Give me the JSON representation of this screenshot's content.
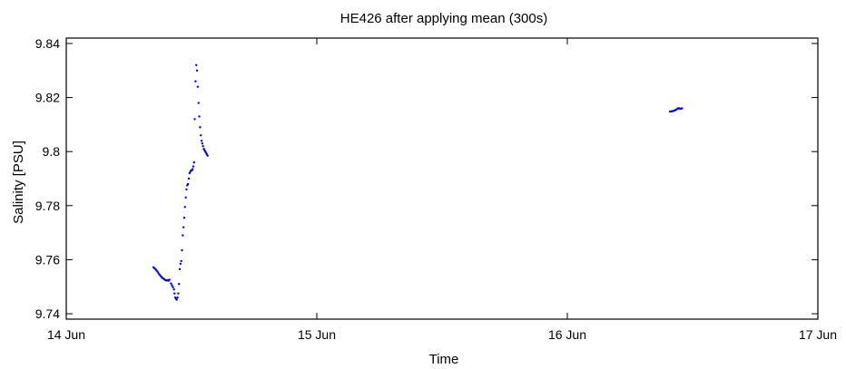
{
  "chart_data": {
    "type": "scatter",
    "title": "HE426 after applying mean (300s)",
    "xlabel": "Time",
    "ylabel": "Salinity [PSU]",
    "xlim": [
      0,
      3
    ],
    "ylim": [
      9.738,
      9.842
    ],
    "x_ticks": [
      {
        "value": 0,
        "label": "14 Jun"
      },
      {
        "value": 1,
        "label": "15 Jun"
      },
      {
        "value": 2,
        "label": "16 Jun"
      },
      {
        "value": 3,
        "label": "17 Jun"
      }
    ],
    "y_ticks": [
      {
        "value": 9.74,
        "label": "9.74"
      },
      {
        "value": 9.76,
        "label": "9.76"
      },
      {
        "value": 9.78,
        "label": "9.78"
      },
      {
        "value": 9.8,
        "label": "9.8"
      },
      {
        "value": 9.82,
        "label": "9.82"
      },
      {
        "value": 9.84,
        "label": "9.84"
      }
    ],
    "grid": false,
    "marker_color": "#0000ff",
    "series": [
      {
        "values": [
          [
            0.348,
            9.7572
          ],
          [
            0.352,
            9.7568
          ],
          [
            0.356,
            9.7565
          ],
          [
            0.36,
            9.756
          ],
          [
            0.364,
            9.7556
          ],
          [
            0.368,
            9.755
          ],
          [
            0.372,
            9.7545
          ],
          [
            0.376,
            9.754
          ],
          [
            0.38,
            9.7536
          ],
          [
            0.384,
            9.7532
          ],
          [
            0.388,
            9.753
          ],
          [
            0.392,
            9.7527
          ],
          [
            0.396,
            9.7524
          ],
          [
            0.4,
            9.7523
          ],
          [
            0.404,
            9.7524
          ],
          [
            0.408,
            9.7522
          ],
          [
            0.412,
            9.7526
          ],
          [
            0.418,
            9.7512
          ],
          [
            0.422,
            9.7505
          ],
          [
            0.426,
            9.7498
          ],
          [
            0.43,
            9.749
          ],
          [
            0.432,
            9.7475
          ],
          [
            0.435,
            9.746
          ],
          [
            0.438,
            9.7455
          ],
          [
            0.441,
            9.7452
          ],
          [
            0.444,
            9.746
          ],
          [
            0.447,
            9.7475
          ],
          [
            0.45,
            9.751
          ],
          [
            0.453,
            9.7565
          ],
          [
            0.456,
            9.7585
          ],
          [
            0.459,
            9.7595
          ],
          [
            0.462,
            9.7635
          ],
          [
            0.465,
            9.769
          ],
          [
            0.468,
            9.772
          ],
          [
            0.471,
            9.7755
          ],
          [
            0.474,
            9.7795
          ],
          [
            0.477,
            9.783
          ],
          [
            0.48,
            9.786
          ],
          [
            0.483,
            9.7875
          ],
          [
            0.486,
            9.788
          ],
          [
            0.489,
            9.79
          ],
          [
            0.492,
            9.792
          ],
          [
            0.495,
            9.7925
          ],
          [
            0.498,
            9.793
          ],
          [
            0.501,
            9.793
          ],
          [
            0.504,
            9.7935
          ],
          [
            0.507,
            9.7945
          ],
          [
            0.51,
            9.796
          ],
          [
            0.513,
            9.812
          ],
          [
            0.516,
            9.826
          ],
          [
            0.519,
            9.832
          ],
          [
            0.522,
            9.83
          ],
          [
            0.525,
            9.824
          ],
          [
            0.528,
            9.818
          ],
          [
            0.531,
            9.813
          ],
          [
            0.534,
            9.809
          ],
          [
            0.537,
            9.806
          ],
          [
            0.54,
            9.804
          ],
          [
            0.543,
            9.803
          ],
          [
            0.546,
            9.802
          ],
          [
            0.549,
            9.801
          ],
          [
            0.552,
            9.8005
          ],
          [
            0.555,
            9.8
          ],
          [
            0.558,
            9.7995
          ],
          [
            0.561,
            9.799
          ],
          [
            0.564,
            9.7985
          ],
          [
            2.41,
            9.8148
          ],
          [
            2.414,
            9.8149
          ],
          [
            2.418,
            9.8149
          ],
          [
            2.422,
            9.815
          ],
          [
            2.426,
            9.8151
          ],
          [
            2.43,
            9.8153
          ],
          [
            2.434,
            9.8155
          ],
          [
            2.438,
            9.8157
          ],
          [
            2.442,
            9.816
          ],
          [
            2.446,
            9.816
          ],
          [
            2.45,
            9.8158
          ],
          [
            2.454,
            9.8159
          ],
          [
            2.458,
            9.816
          ]
        ]
      }
    ]
  }
}
